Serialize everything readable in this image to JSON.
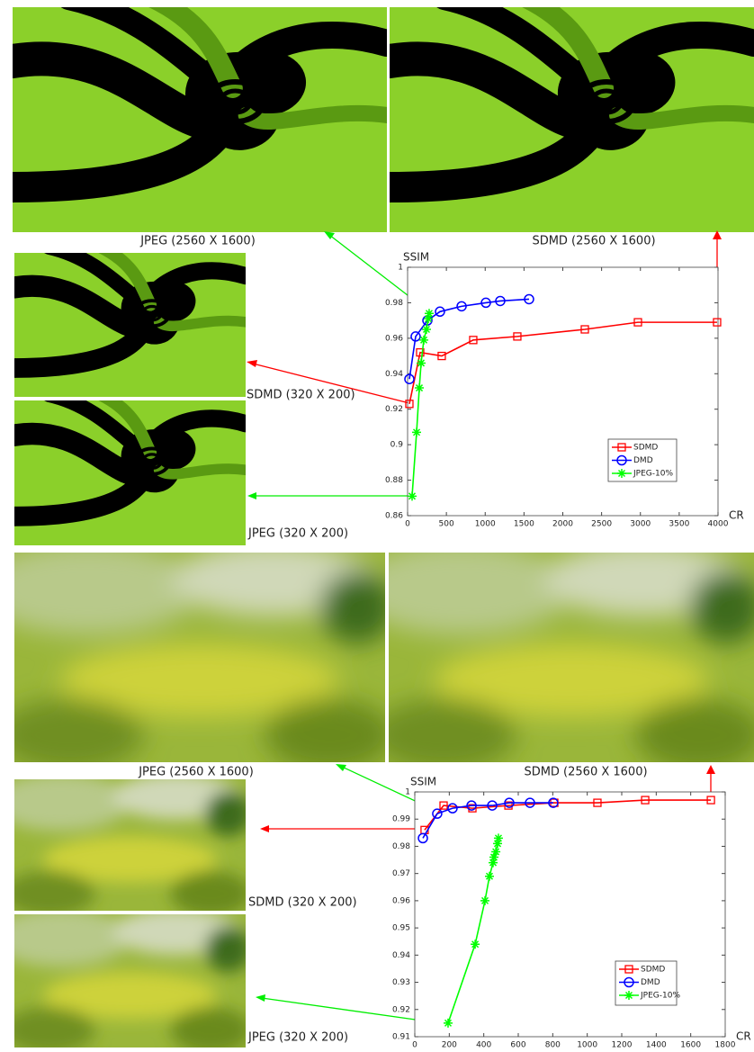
{
  "chart_data": [
    {
      "type": "line",
      "xlabel": "CR",
      "ylabel": "SSIM",
      "xlim": [
        0,
        4000
      ],
      "xticks": [
        0,
        500,
        1000,
        1500,
        2000,
        2500,
        3000,
        3500,
        4000
      ],
      "ylim": [
        0.86,
        1
      ],
      "yticks": [
        0.86,
        0.88,
        0.9,
        0.92,
        0.94,
        0.96,
        0.98,
        1
      ],
      "legend": "lower right",
      "annotations": [
        "JPEG (2560 X 1600)",
        "SDMD (2560 X 1600)",
        "SDMD (320 X 200)",
        "JPEG (320 X 200)"
      ],
      "series": [
        {
          "name": "SDMD",
          "color": "#ff0000",
          "marker": "square",
          "x": [
            23,
            162,
            440,
            846,
            1414,
            2284,
            2968,
            3988
          ],
          "values": [
            0.923,
            0.952,
            0.95,
            0.959,
            0.961,
            0.965,
            0.969,
            0.969
          ]
        },
        {
          "name": "DMD",
          "color": "#0000ff",
          "marker": "circle",
          "x": [
            23,
            104,
            255,
            417,
            696,
            1009,
            1194,
            1565
          ],
          "values": [
            0.937,
            0.961,
            0.97,
            0.975,
            0.978,
            0.98,
            0.981,
            0.982
          ]
        },
        {
          "name": "JPEG-10%",
          "color": "#00ff00",
          "marker": "asterisk",
          "x": [
            58,
            116,
            151,
            174,
            209,
            243,
            267,
            278
          ],
          "values": [
            0.871,
            0.907,
            0.932,
            0.946,
            0.959,
            0.965,
            0.971,
            0.974
          ]
        }
      ]
    },
    {
      "type": "line",
      "xlabel": "CR",
      "ylabel": "SSIM",
      "xlim": [
        0,
        1800
      ],
      "xticks": [
        0,
        200,
        400,
        600,
        800,
        1000,
        1200,
        1400,
        1600,
        1800
      ],
      "ylim": [
        0.91,
        1
      ],
      "yticks": [
        0.91,
        0.92,
        0.93,
        0.94,
        0.95,
        0.96,
        0.97,
        0.98,
        0.99,
        1
      ],
      "legend": "lower right",
      "annotations": [
        "JPEG (2560 X 1600)",
        "SDMD (2560 X 1600)",
        "SDMD (320 X 200)",
        "JPEG (320 X 200)"
      ],
      "series": [
        {
          "name": "SDMD",
          "color": "#ff0000",
          "marker": "square",
          "x": [
            57,
            167,
            334,
            543,
            809,
            1059,
            1336,
            1717
          ],
          "values": [
            0.986,
            0.995,
            0.994,
            0.995,
            0.996,
            0.996,
            0.997,
            0.997
          ]
        },
        {
          "name": "DMD",
          "color": "#0000ff",
          "marker": "circle",
          "x": [
            47,
            130,
            219,
            329,
            449,
            548,
            668,
            803
          ],
          "values": [
            0.983,
            0.992,
            0.994,
            0.995,
            0.995,
            0.996,
            0.996,
            0.996
          ]
        },
        {
          "name": "JPEG-10%",
          "color": "#00ff00",
          "marker": "asterisk",
          "x": [
            193,
            350,
            407,
            433,
            454,
            459,
            470,
            480,
            485
          ],
          "values": [
            0.915,
            0.944,
            0.96,
            0.969,
            0.974,
            0.976,
            0.978,
            0.981,
            0.983
          ]
        }
      ]
    }
  ]
}
